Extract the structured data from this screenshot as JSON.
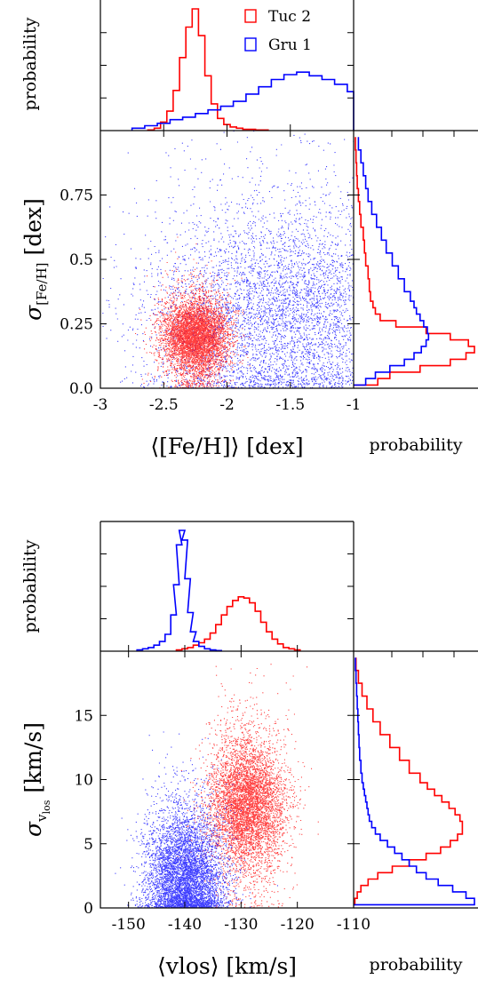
{
  "chart_data": [
    {
      "type": "scatter",
      "panel": "metallicity",
      "xlabel": "⟨[Fe/H]⟩ [dex]",
      "ylabel": "σ[Fe/H] [dex]",
      "ylabel_main": "σ",
      "ylabel_sub": "[Fe/H]",
      "ylabel_unit": "[dex]",
      "xlim": [
        -3,
        -1
      ],
      "ylim": [
        0,
        1
      ],
      "xticks": [
        -3,
        -2.5,
        -2,
        -1.5,
        -1
      ],
      "xtick_labels": [
        "-3",
        "-2.5",
        "-2",
        "-1.5",
        "-1"
      ],
      "yticks": [
        0,
        0.25,
        0.5,
        0.75
      ],
      "ytick_labels": [
        "0.0",
        "0.25",
        "0.5",
        "0.75"
      ],
      "top_hist_ylabel": "probability",
      "right_hist_xlabel": "probability",
      "legend": {
        "placement": "top-right",
        "entries": [
          "Tuc 2",
          "Gru 1"
        ]
      },
      "series": [
        {
          "name": "Tuc 2",
          "color": "#ff0000",
          "scatter_center": [
            -2.25,
            0.2
          ],
          "scatter_spread": [
            0.13,
            0.1
          ],
          "top_hist": {
            "x": [
              -2.6,
              -2.55,
              -2.5,
              -2.45,
              -2.4,
              -2.35,
              -2.3,
              -2.25,
              -2.2,
              -2.15,
              -2.1,
              -2.05,
              -2.0,
              -1.95,
              -1.9,
              -1.85,
              -1.8,
              -1.75,
              -1.7
            ],
            "y": [
              0.005,
              0.02,
              0.07,
              0.16,
              0.33,
              0.6,
              0.85,
              1.0,
              0.78,
              0.45,
              0.22,
              0.1,
              0.05,
              0.03,
              0.02,
              0.01,
              0.01,
              0.005,
              0.005
            ]
          },
          "right_hist": {
            "y": [
              0.025,
              0.05,
              0.075,
              0.1,
              0.125,
              0.15,
              0.175,
              0.2,
              0.225,
              0.25,
              0.275,
              0.3,
              0.325,
              0.35,
              0.4,
              0.45,
              0.5,
              0.55,
              0.6,
              0.65,
              0.7,
              0.75,
              0.8,
              0.85,
              0.9,
              0.95
            ],
            "x": [
              0.2,
              0.3,
              0.55,
              0.8,
              0.93,
              1.0,
              0.95,
              0.8,
              0.6,
              0.35,
              0.22,
              0.18,
              0.16,
              0.14,
              0.13,
              0.12,
              0.1,
              0.09,
              0.08,
              0.06,
              0.05,
              0.04,
              0.03,
              0.025,
              0.02,
              0.015
            ]
          }
        },
        {
          "name": "Gru 1",
          "color": "#0000ff",
          "scatter_center": [
            -1.55,
            0.3
          ],
          "scatter_spread": [
            0.55,
            0.3
          ],
          "top_hist": {
            "x": [
              -2.7,
              -2.6,
              -2.5,
              -2.4,
              -2.3,
              -2.2,
              -2.1,
              -2.0,
              -1.9,
              -1.8,
              -1.7,
              -1.6,
              -1.5,
              -1.4,
              -1.3,
              -1.2,
              -1.1,
              -1.0
            ],
            "y": [
              0.02,
              0.04,
              0.06,
              0.09,
              0.11,
              0.14,
              0.17,
              0.2,
              0.24,
              0.3,
              0.36,
              0.42,
              0.46,
              0.48,
              0.45,
              0.42,
              0.38,
              0.32
            ]
          },
          "right_hist": {
            "y": [
              0.025,
              0.05,
              0.075,
              0.1,
              0.125,
              0.15,
              0.175,
              0.2,
              0.225,
              0.25,
              0.275,
              0.3,
              0.325,
              0.35,
              0.4,
              0.45,
              0.5,
              0.55,
              0.6,
              0.65,
              0.7,
              0.75,
              0.8,
              0.85,
              0.9,
              0.95
            ],
            "x": [
              0.1,
              0.18,
              0.3,
              0.42,
              0.5,
              0.56,
              0.6,
              0.62,
              0.61,
              0.58,
              0.55,
              0.52,
              0.5,
              0.47,
              0.42,
              0.37,
              0.32,
              0.27,
              0.23,
              0.19,
              0.15,
              0.12,
              0.1,
              0.08,
              0.06,
              0.04
            ]
          }
        }
      ]
    },
    {
      "type": "scatter",
      "panel": "velocity",
      "xlabel": "⟨vlos⟩ [km/s]",
      "ylabel": "σvlos [km/s]",
      "ylabel_main": "σ",
      "ylabel_sub": "v",
      "ylabel_subsub": "los",
      "ylabel_unit": "[km/s]",
      "xlim": [
        -155,
        -110
      ],
      "ylim": [
        0,
        20
      ],
      "xticks": [
        -150,
        -140,
        -130,
        -120,
        -110
      ],
      "xtick_labels": [
        "-150",
        "-140",
        "-130",
        "-120",
        "-110"
      ],
      "yticks": [
        0,
        5,
        10,
        15
      ],
      "ytick_labels": [
        "0",
        "5",
        "10",
        "15"
      ],
      "top_hist_ylabel": "probability",
      "right_hist_xlabel": "probability",
      "series": [
        {
          "name": "Tuc 2",
          "color": "#ff0000",
          "scatter_center": [
            -129,
            8
          ],
          "scatter_spread": [
            3.5,
            3.5
          ],
          "top_hist": {
            "x": [
              -141,
              -140,
              -139,
              -138,
              -137,
              -136,
              -135,
              -134,
              -133,
              -132,
              -131,
              -130,
              -129,
              -128,
              -127,
              -126,
              -125,
              -124,
              -123,
              -122,
              -121,
              -120
            ],
            "y": [
              0.01,
              0.02,
              0.03,
              0.05,
              0.07,
              0.1,
              0.15,
              0.22,
              0.3,
              0.37,
              0.42,
              0.45,
              0.44,
              0.4,
              0.33,
              0.24,
              0.16,
              0.1,
              0.06,
              0.03,
              0.02,
              0.01
            ]
          },
          "right_hist": {
            "y": [
              0.5,
              1,
              1.5,
              2,
              2.5,
              3,
              3.5,
              4,
              4.5,
              5,
              5.5,
              6,
              6.5,
              7,
              7.5,
              8,
              8.5,
              9,
              9.5,
              10,
              11,
              12,
              13,
              14,
              15,
              16,
              17,
              18,
              19
            ],
            "x": [
              0.01,
              0.03,
              0.06,
              0.12,
              0.2,
              0.32,
              0.46,
              0.6,
              0.72,
              0.8,
              0.86,
              0.9,
              0.9,
              0.88,
              0.84,
              0.79,
              0.73,
              0.67,
              0.61,
              0.55,
              0.46,
              0.38,
              0.3,
              0.22,
              0.16,
              0.11,
              0.07,
              0.04,
              0.02
            ]
          }
        },
        {
          "name": "Gru 1",
          "color": "#0000ff",
          "scatter_center": [
            -140,
            2.5
          ],
          "scatter_spread": [
            3.5,
            3.5
          ],
          "top_hist": {
            "x": [
              -148,
              -147,
              -146,
              -145,
              -144,
              -143,
              -142,
              -141.5,
              -141,
              -140.5,
              -140,
              -139.5,
              -139,
              -138.5,
              -138,
              -137,
              -136,
              -135,
              -134
            ],
            "y": [
              0.01,
              0.02,
              0.03,
              0.05,
              0.08,
              0.14,
              0.3,
              0.55,
              0.88,
              1.0,
              0.92,
              0.6,
              0.32,
              0.16,
              0.08,
              0.04,
              0.02,
              0.01,
              0.005
            ]
          },
          "right_hist": {
            "y": [
              0.5,
              1,
              1.5,
              2,
              2.5,
              3,
              3.5,
              4,
              4.5,
              5,
              5.5,
              6,
              6.5,
              7,
              7.5,
              8,
              8.5,
              9,
              9.5,
              10,
              11,
              12,
              13,
              14,
              15,
              16,
              17,
              18,
              19
            ],
            "x": [
              1.0,
              0.93,
              0.82,
              0.7,
              0.6,
              0.52,
              0.46,
              0.4,
              0.34,
              0.28,
              0.22,
              0.18,
              0.15,
              0.13,
              0.12,
              0.11,
              0.1,
              0.09,
              0.08,
              0.07,
              0.06,
              0.05,
              0.045,
              0.04,
              0.035,
              0.03,
              0.025,
              0.02,
              0.015
            ]
          }
        }
      ]
    }
  ]
}
